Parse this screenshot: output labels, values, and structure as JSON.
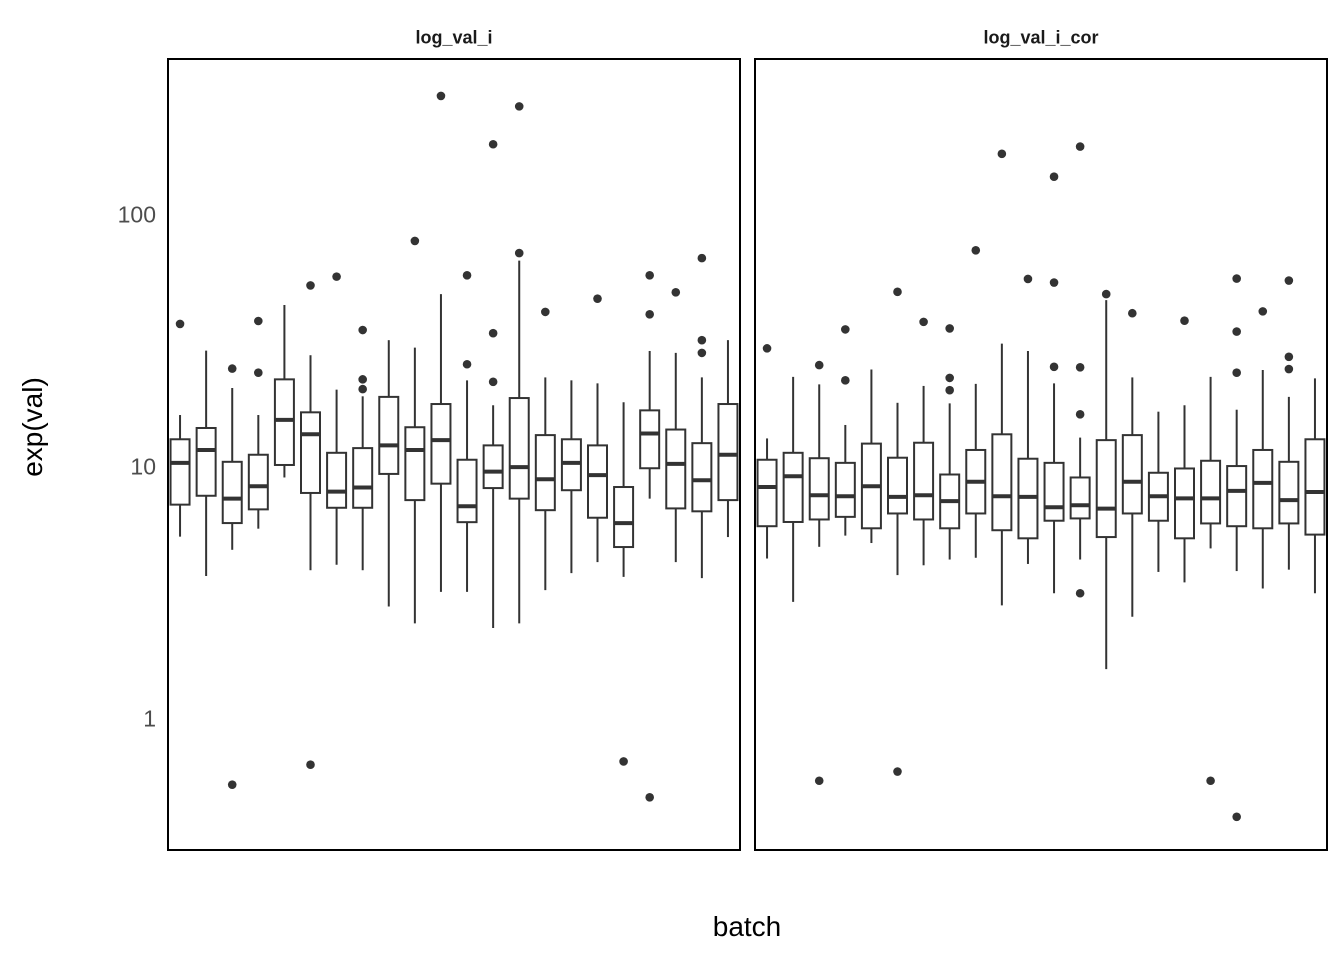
{
  "chart_data": {
    "type": "boxplot",
    "xlabel": "batch",
    "ylabel": "exp(val)",
    "y_scale": "log10",
    "y_ticks": [
      100,
      10,
      1
    ],
    "y_tick_labels": [
      "100",
      "10",
      "1"
    ],
    "y_domain": [
      0.3,
      420
    ],
    "grid": "off",
    "legend": "none",
    "x_tick_labels": "none",
    "colors": {
      "box_stroke": "#333333",
      "box_fill": "#ffffff",
      "outlier_fill": "#333333",
      "panel_border": "#000000",
      "tick_text": "#4d4d4d",
      "axis_title_text": "#000000",
      "strip_text": "#1a1a1a"
    },
    "facets": [
      {
        "title": "log_val_i",
        "boxes": [
          {
            "lo": 5.3,
            "q1": 7.1,
            "med": 10.4,
            "q3": 12.9,
            "hi": 16.1,
            "out": [
              37
            ]
          },
          {
            "lo": 3.7,
            "q1": 7.7,
            "med": 11.7,
            "q3": 14.3,
            "hi": 29.0,
            "out": []
          },
          {
            "lo": 4.7,
            "q1": 6.0,
            "med": 7.5,
            "q3": 10.5,
            "hi": 20.6,
            "out": [
              24.6,
              0.55
            ]
          },
          {
            "lo": 5.7,
            "q1": 6.8,
            "med": 8.4,
            "q3": 11.2,
            "hi": 16.1,
            "out": [
              38,
              23.7
            ]
          },
          {
            "lo": 9.1,
            "q1": 10.2,
            "med": 15.4,
            "q3": 22.3,
            "hi": 44.0,
            "out": []
          },
          {
            "lo": 3.9,
            "q1": 7.9,
            "med": 13.5,
            "q3": 16.5,
            "hi": 27.8,
            "out": [
              52.6,
              0.66
            ]
          },
          {
            "lo": 4.1,
            "q1": 6.9,
            "med": 8.0,
            "q3": 11.4,
            "hi": 20.3,
            "out": [
              57
            ]
          },
          {
            "lo": 3.9,
            "q1": 6.9,
            "med": 8.3,
            "q3": 11.9,
            "hi": 19.1,
            "out": [
              35,
              22.3,
              20.4
            ]
          },
          {
            "lo": 2.8,
            "q1": 9.4,
            "med": 12.2,
            "q3": 19.0,
            "hi": 31.9,
            "out": []
          },
          {
            "lo": 2.4,
            "q1": 7.4,
            "med": 11.7,
            "q3": 14.4,
            "hi": 29.8,
            "out": [
              79
            ]
          },
          {
            "lo": 3.2,
            "q1": 8.6,
            "med": 12.8,
            "q3": 17.8,
            "hi": 48.6,
            "out": [
              297
            ]
          },
          {
            "lo": 3.2,
            "q1": 6.05,
            "med": 7.0,
            "q3": 10.7,
            "hi": 22.1,
            "out": [
              57.7,
              25.6
            ]
          },
          {
            "lo": 2.3,
            "q1": 8.26,
            "med": 9.6,
            "q3": 12.2,
            "hi": 17.6,
            "out": [
              191,
              34,
              21.8
            ]
          },
          {
            "lo": 2.4,
            "q1": 7.5,
            "med": 10.0,
            "q3": 18.8,
            "hi": 66.0,
            "out": [
              270,
              70.7
            ]
          },
          {
            "lo": 3.25,
            "q1": 6.75,
            "med": 8.95,
            "q3": 13.4,
            "hi": 22.7,
            "out": [
              41.3
            ]
          },
          {
            "lo": 3.8,
            "q1": 8.1,
            "med": 10.4,
            "q3": 12.9,
            "hi": 22.1,
            "out": []
          },
          {
            "lo": 4.2,
            "q1": 6.3,
            "med": 9.3,
            "q3": 12.2,
            "hi": 21.5,
            "out": [
              46.6
            ]
          },
          {
            "lo": 3.67,
            "q1": 4.82,
            "med": 6.0,
            "q3": 8.34,
            "hi": 18.1,
            "out": [
              0.68
            ]
          },
          {
            "lo": 7.5,
            "q1": 9.9,
            "med": 13.6,
            "q3": 16.8,
            "hi": 28.9,
            "out": [
              57.7,
              40.4,
              0.49
            ]
          },
          {
            "lo": 4.2,
            "q1": 6.86,
            "med": 10.3,
            "q3": 14.1,
            "hi": 28.4,
            "out": [
              49.4
            ]
          },
          {
            "lo": 3.63,
            "q1": 6.68,
            "med": 8.87,
            "q3": 12.45,
            "hi": 22.7,
            "out": [
              67.5,
              31.9,
              28.4
            ]
          },
          {
            "lo": 5.28,
            "q1": 7.4,
            "med": 11.2,
            "q3": 17.8,
            "hi": 31.9,
            "out": []
          }
        ]
      },
      {
        "title": "log_val_i_cor",
        "boxes": [
          {
            "lo": 4.34,
            "q1": 5.83,
            "med": 8.34,
            "q3": 10.7,
            "hi": 13.0,
            "out": [
              29.6
            ]
          },
          {
            "lo": 2.92,
            "q1": 6.06,
            "med": 9.2,
            "q3": 11.4,
            "hi": 22.8,
            "out": []
          },
          {
            "lo": 4.83,
            "q1": 6.2,
            "med": 7.74,
            "q3": 10.85,
            "hi": 21.3,
            "out": [
              25.4,
              0.57
            ]
          },
          {
            "lo": 5.35,
            "q1": 6.35,
            "med": 7.67,
            "q3": 10.4,
            "hi": 14.7,
            "out": [
              35.2,
              22.1
            ]
          },
          {
            "lo": 5.0,
            "q1": 5.72,
            "med": 8.4,
            "q3": 12.4,
            "hi": 24.4,
            "out": []
          },
          {
            "lo": 3.73,
            "q1": 6.55,
            "med": 7.62,
            "q3": 10.9,
            "hi": 18.0,
            "out": [
              49.6,
              0.62
            ]
          },
          {
            "lo": 4.08,
            "q1": 6.2,
            "med": 7.74,
            "q3": 12.5,
            "hi": 21.0,
            "out": [
              37.7
            ]
          },
          {
            "lo": 4.3,
            "q1": 5.72,
            "med": 7.33,
            "q3": 9.35,
            "hi": 17.9,
            "out": [
              35.5,
              22.6,
              20.2
            ]
          },
          {
            "lo": 4.37,
            "q1": 6.55,
            "med": 8.75,
            "q3": 11.7,
            "hi": 21.4,
            "out": [
              72.5
            ]
          },
          {
            "lo": 2.83,
            "q1": 5.62,
            "med": 7.67,
            "q3": 13.5,
            "hi": 30.9,
            "out": [
              175
            ]
          },
          {
            "lo": 4.13,
            "q1": 5.22,
            "med": 7.62,
            "q3": 10.8,
            "hi": 28.9,
            "out": [
              55.8
            ]
          },
          {
            "lo": 3.16,
            "q1": 6.13,
            "med": 6.93,
            "q3": 10.4,
            "hi": 21.5,
            "out": [
              142,
              54,
              25
            ]
          },
          {
            "lo": 4.3,
            "q1": 6.26,
            "med": 7.06,
            "q3": 9.1,
            "hi": 13.1,
            "out": [
              187,
              24.9,
              16.2,
              3.16
            ]
          },
          {
            "lo": 1.58,
            "q1": 5.28,
            "med": 6.85,
            "q3": 12.8,
            "hi": 46.0,
            "out": [
              48.6
            ]
          },
          {
            "lo": 2.55,
            "q1": 6.55,
            "med": 8.75,
            "q3": 13.4,
            "hi": 22.7,
            "out": [
              40.8
            ]
          },
          {
            "lo": 3.84,
            "q1": 6.13,
            "med": 7.67,
            "q3": 9.5,
            "hi": 16.6,
            "out": []
          },
          {
            "lo": 3.49,
            "q1": 5.22,
            "med": 7.52,
            "q3": 9.88,
            "hi": 17.6,
            "out": [
              38.1
            ]
          },
          {
            "lo": 4.76,
            "q1": 5.98,
            "med": 7.52,
            "q3": 10.6,
            "hi": 22.8,
            "out": [
              0.57
            ]
          },
          {
            "lo": 3.87,
            "q1": 5.83,
            "med": 8.05,
            "q3": 10.1,
            "hi": 16.9,
            "out": [
              56,
              34.5,
              23.7,
              0.41
            ]
          },
          {
            "lo": 3.3,
            "q1": 5.72,
            "med": 8.66,
            "q3": 11.7,
            "hi": 24.3,
            "out": [
              41.5
            ]
          },
          {
            "lo": 3.92,
            "q1": 5.98,
            "med": 7.4,
            "q3": 10.5,
            "hi": 19.0,
            "out": [
              55,
              27.4,
              24.5
            ]
          },
          {
            "lo": 3.16,
            "q1": 5.4,
            "med": 7.97,
            "q3": 12.9,
            "hi": 22.5,
            "out": []
          }
        ]
      }
    ]
  }
}
